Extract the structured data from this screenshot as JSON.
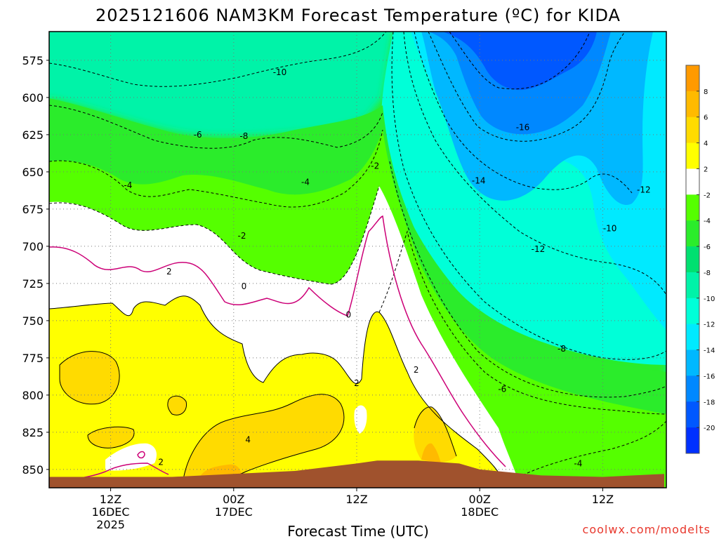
{
  "chart_data": {
    "type": "heatmap",
    "title": "2025121606 NAM3KM Forecast Temperature (ºC) for KIDA",
    "xlabel": "Forecast Time (UTC)",
    "ylabel": "",
    "credit": "coolwx.com/modelts",
    "x_unit": "forecast hour from 2025-12-16 06Z",
    "xlim": [
      0,
      60
    ],
    "ylim": [
      860,
      555
    ],
    "y_ticks": [
      575,
      600,
      625,
      650,
      675,
      700,
      725,
      750,
      775,
      800,
      825,
      850
    ],
    "x_ticks": [
      {
        "hour": 6,
        "lines": [
          "12Z",
          "16DEC",
          "2025"
        ]
      },
      {
        "hour": 18,
        "lines": [
          "00Z",
          "17DEC"
        ]
      },
      {
        "hour": 30,
        "lines": [
          "12Z"
        ]
      },
      {
        "hour": 42,
        "lines": [
          "00Z",
          "18DEC"
        ]
      },
      {
        "hour": 54,
        "lines": [
          "12Z"
        ]
      }
    ],
    "colorbar": {
      "levels": [
        8,
        6,
        4,
        2,
        -2,
        -4,
        -6,
        -8,
        -10,
        -12,
        -14,
        -16,
        -18,
        -20
      ],
      "colors": [
        "#ff9a00",
        "#ffba00",
        "#ffdb00",
        "#ffff00",
        "#ffffff",
        "#55ff00",
        "#2bec2b",
        "#00e070",
        "#00f3a8",
        "#00ffd8",
        "#00eaff",
        "#00b8ff",
        "#0088ff",
        "#0058ff",
        "#0030ff"
      ]
    },
    "contour_labels": [
      {
        "text": "-10",
        "hour": 22.5,
        "p": 583
      },
      {
        "text": "-6",
        "hour": 14.5,
        "p": 625
      },
      {
        "text": "-8",
        "hour": 19.0,
        "p": 626
      },
      {
        "text": "-4",
        "hour": 7.7,
        "p": 659
      },
      {
        "text": "-4",
        "hour": 25.0,
        "p": 657
      },
      {
        "text": "-2",
        "hour": 18.8,
        "p": 693
      },
      {
        "text": "-2",
        "hour": 31.8,
        "p": 646
      },
      {
        "text": "2",
        "hour": 11.7,
        "p": 717
      },
      {
        "text": "0",
        "hour": 19.0,
        "p": 727
      },
      {
        "text": "0",
        "hour": 29.2,
        "p": 746
      },
      {
        "text": "2",
        "hour": 30.0,
        "p": 792
      },
      {
        "text": "2",
        "hour": 35.8,
        "p": 783
      },
      {
        "text": "4",
        "hour": 19.4,
        "p": 830
      },
      {
        "text": "2",
        "hour": 10.9,
        "p": 845
      },
      {
        "text": "-6",
        "hour": 44.2,
        "p": 796
      },
      {
        "text": "-8",
        "hour": 50.0,
        "p": 769
      },
      {
        "text": "-12",
        "hour": 47.7,
        "p": 702
      },
      {
        "text": "-10",
        "hour": 54.7,
        "p": 688
      },
      {
        "text": "-14",
        "hour": 41.9,
        "p": 656
      },
      {
        "text": "-16",
        "hour": 46.2,
        "p": 620
      },
      {
        "text": "-12",
        "hour": 58.0,
        "p": 662
      },
      {
        "text": "-4",
        "hour": 51.6,
        "p": 846
      }
    ],
    "surface_pressure": [
      [
        0,
        855
      ],
      [
        6,
        855
      ],
      [
        12,
        855
      ],
      [
        18,
        853
      ],
      [
        24,
        851
      ],
      [
        30,
        846
      ],
      [
        32,
        844
      ],
      [
        36,
        844
      ],
      [
        40,
        846
      ],
      [
        42,
        850
      ],
      [
        48,
        854
      ],
      [
        54,
        855
      ],
      [
        60,
        853
      ]
    ]
  }
}
